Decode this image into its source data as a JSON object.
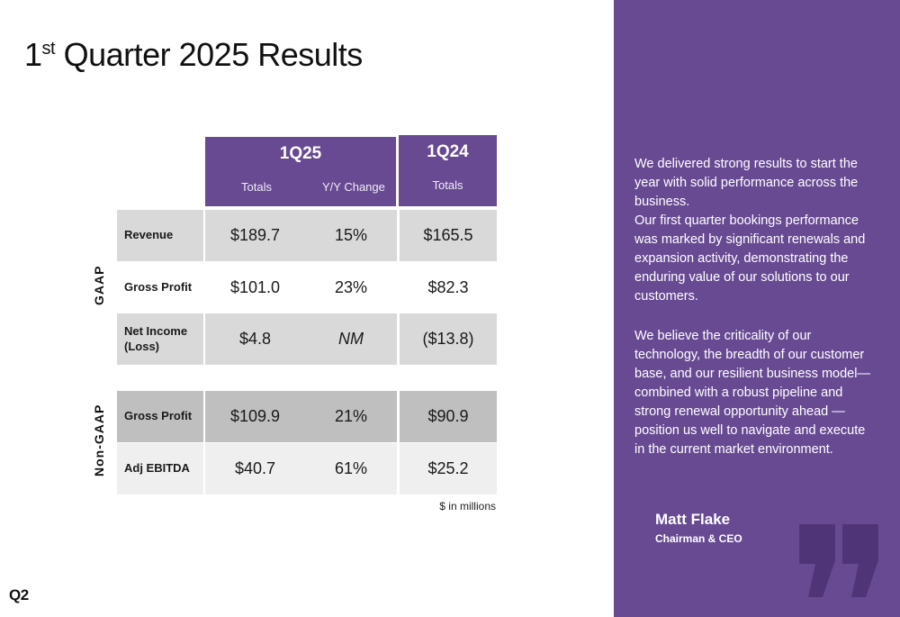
{
  "title": {
    "prefix": "1",
    "sup": "st",
    "rest": " Quarter 2025 Results"
  },
  "columns": {
    "q25": {
      "label": "1Q25",
      "sub1": "Totals",
      "sub2": "Y/Y Change"
    },
    "q24": {
      "label": "1Q24",
      "sub": "Totals"
    }
  },
  "sections": {
    "gaap": "GAAP",
    "non_gaap": "Non-GAAP"
  },
  "rows": [
    {
      "label": "Revenue",
      "q25_total": "$189.7",
      "yy_change": "15%",
      "q24_total": "$165.5"
    },
    {
      "label": "Gross Profit",
      "q25_total": "$101.0",
      "yy_change": "23%",
      "q24_total": "$82.3"
    },
    {
      "label": "Net Income (Loss)",
      "q25_total": "$4.8",
      "yy_change": "NM",
      "q24_total": "($13.8)"
    },
    {
      "label": "Gross Profit",
      "q25_total": "$109.9",
      "yy_change": "21%",
      "q24_total": "$90.9"
    },
    {
      "label": "Adj EBITDA",
      "q25_total": "$40.7",
      "yy_change": "61%",
      "q24_total": "$25.2"
    }
  ],
  "units_note": "$ in millions",
  "logo": "Q2",
  "quote": {
    "paragraphs": [
      "We delivered strong results to start the year with solid performance across the business.",
      "Our first quarter bookings performance was marked by significant renewals and expansion activity, demonstrating the enduring value of our solutions to our customers.",
      "We believe the criticality of our technology, the breadth of our customer base, and our resilient business model—combined with a robust pipeline and strong renewal opportunity ahead — position us well to navigate and execute in the current market environment."
    ],
    "name": "Matt Flake",
    "role": "Chairman & CEO",
    "icon": "quote-mark-icon"
  },
  "colors": {
    "brand_purple": "#684a93",
    "row_light": "#d9d9d9",
    "row_dark": "#bfbfbf",
    "row_lighter": "#efefef",
    "quote_icon": "#4f3577"
  }
}
